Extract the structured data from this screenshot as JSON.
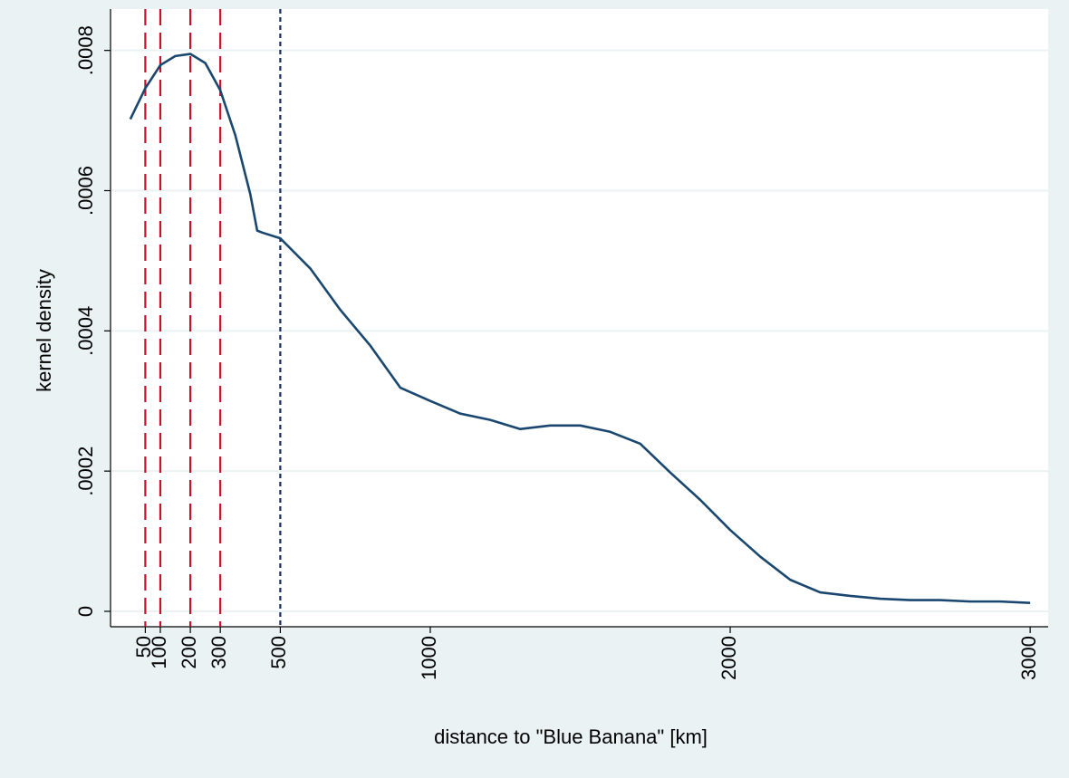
{
  "chart_data": {
    "type": "line",
    "x_label": "distance to \"Blue Banana\" [km]",
    "y_label": "kernel density",
    "x": [
      0,
      50,
      100,
      150,
      200,
      250,
      300,
      350,
      400,
      423,
      441,
      500,
      600,
      700,
      800,
      900,
      1000,
      1100,
      1200,
      1300,
      1400,
      1500,
      1600,
      1700,
      1800,
      1900,
      2000,
      2100,
      2200,
      2300,
      2400,
      2500,
      2600,
      2700,
      2800,
      2900,
      3000
    ],
    "series": [
      {
        "color": "#1a476f",
        "values": [
          0.000702,
          0.000746,
          0.000779,
          0.000792,
          0.000795,
          0.000782,
          0.000743,
          0.000679,
          0.000595,
          0.000543,
          0.00054,
          0.000532,
          0.000489,
          0.00043,
          0.000379,
          0.000319,
          0.0003,
          0.000282,
          0.000273,
          0.00026,
          0.000265,
          0.000265,
          0.000256,
          0.000239,
          0.000198,
          0.000159,
          0.000116,
          7.8e-05,
          4.5e-05,
          2.7e-05,
          2.2e-05,
          1.8e-05,
          1.6e-05,
          1.6e-05,
          1.4e-05,
          1.4e-05,
          1.2e-05
        ]
      }
    ],
    "vlines": [
      {
        "value": 50,
        "color": "#c8102e",
        "style": "dashed"
      },
      {
        "value": 100,
        "color": "#c8102e",
        "style": "dashed"
      },
      {
        "value": 200,
        "color": "#c8102e",
        "style": "dashed"
      },
      {
        "value": 300,
        "color": "#c8102e",
        "style": "dashed"
      },
      {
        "value": 500,
        "color": "#1a2a5e",
        "style": "dotted"
      }
    ],
    "xlim": [
      -66,
      3060
    ],
    "ylim": [
      -2.2e-05,
      0.000859
    ],
    "xticks": [
      50,
      100,
      200,
      300,
      500,
      1000,
      2000,
      3000
    ],
    "yticks": [
      0,
      {
        "value": 0.0002,
        "label": ".0002"
      },
      {
        "value": 0.0004,
        "label": ".0004"
      },
      {
        "value": 0.0006,
        "label": ".0006"
      },
      {
        "value": 0.0008,
        "label": ".0008"
      }
    ],
    "grid": true
  }
}
